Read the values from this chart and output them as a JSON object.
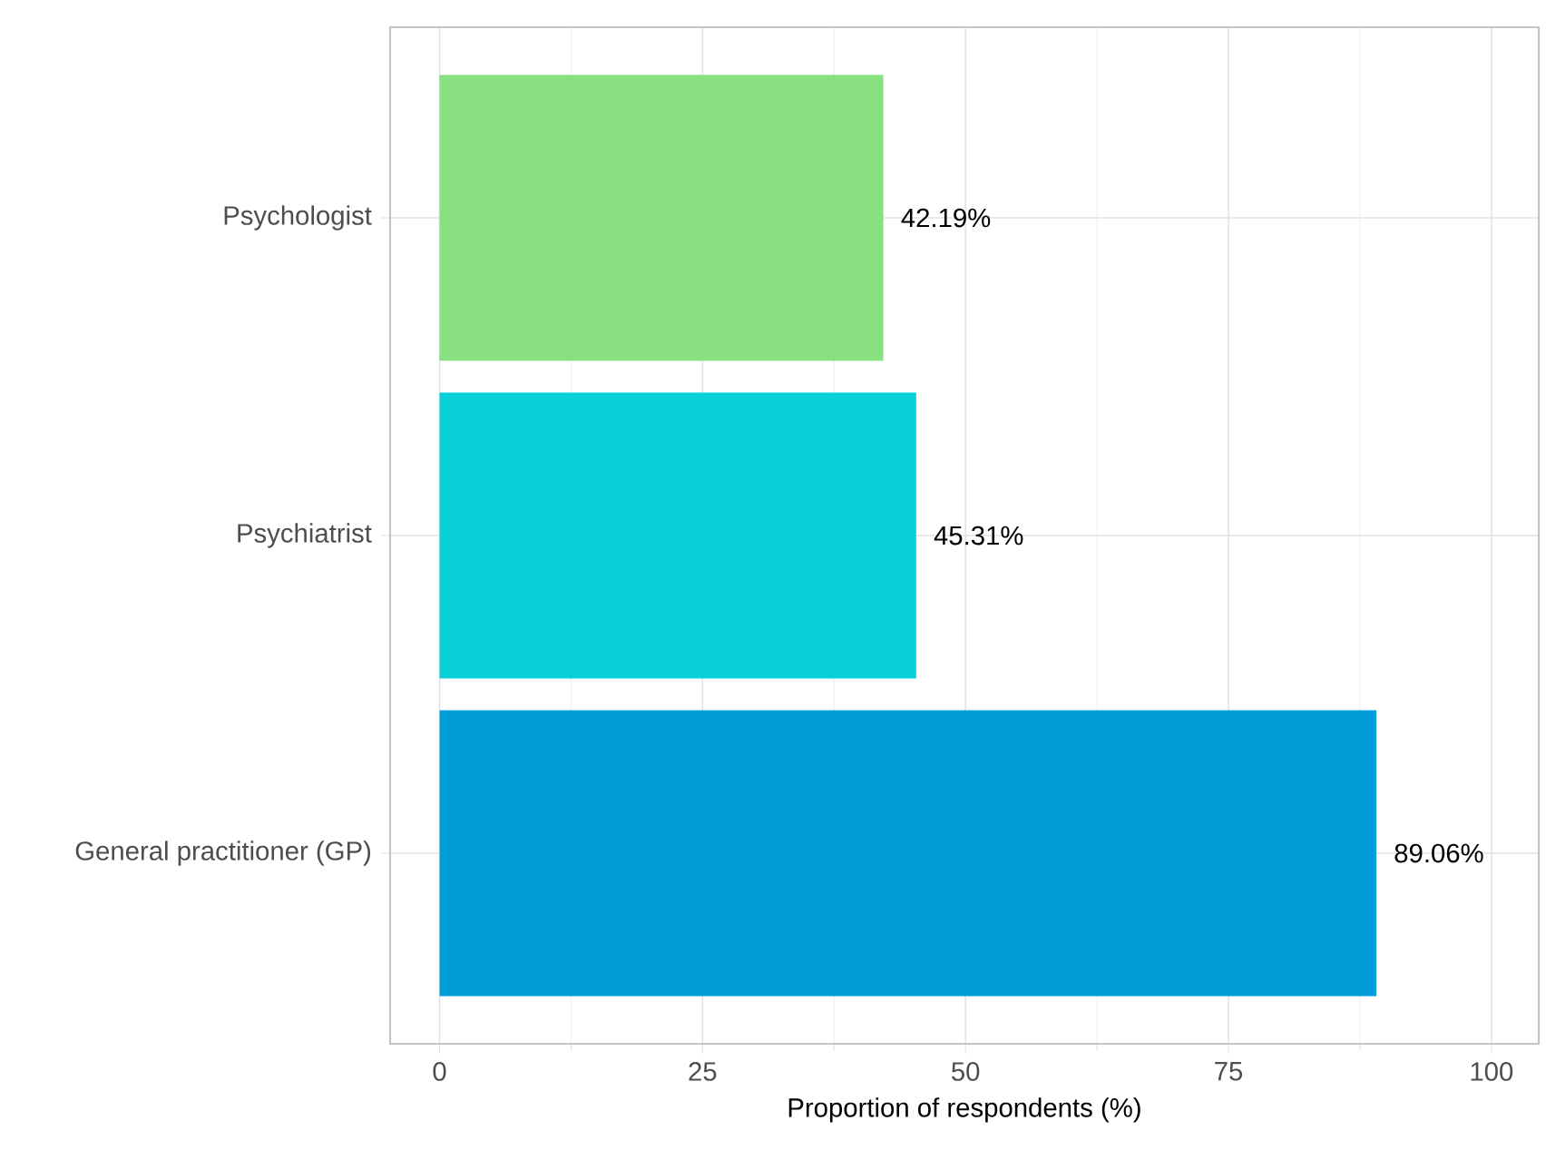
{
  "chart_data": {
    "type": "bar",
    "orientation": "horizontal",
    "xlabel": "Proportion of respondents (%)",
    "categories": [
      "Psychologist",
      "Psychiatrist",
      "General practitioner (GP)"
    ],
    "values": [
      42.19,
      45.31,
      89.06
    ],
    "colors": [
      "#88e080",
      "#09d0d8",
      "#009dd9"
    ],
    "value_labels": [
      "42.19%",
      "45.31%",
      "89.06%"
    ],
    "xlim": [
      -4.7,
      104.5
    ],
    "xticks": [
      0,
      25,
      50,
      75,
      100
    ],
    "grid": true
  }
}
